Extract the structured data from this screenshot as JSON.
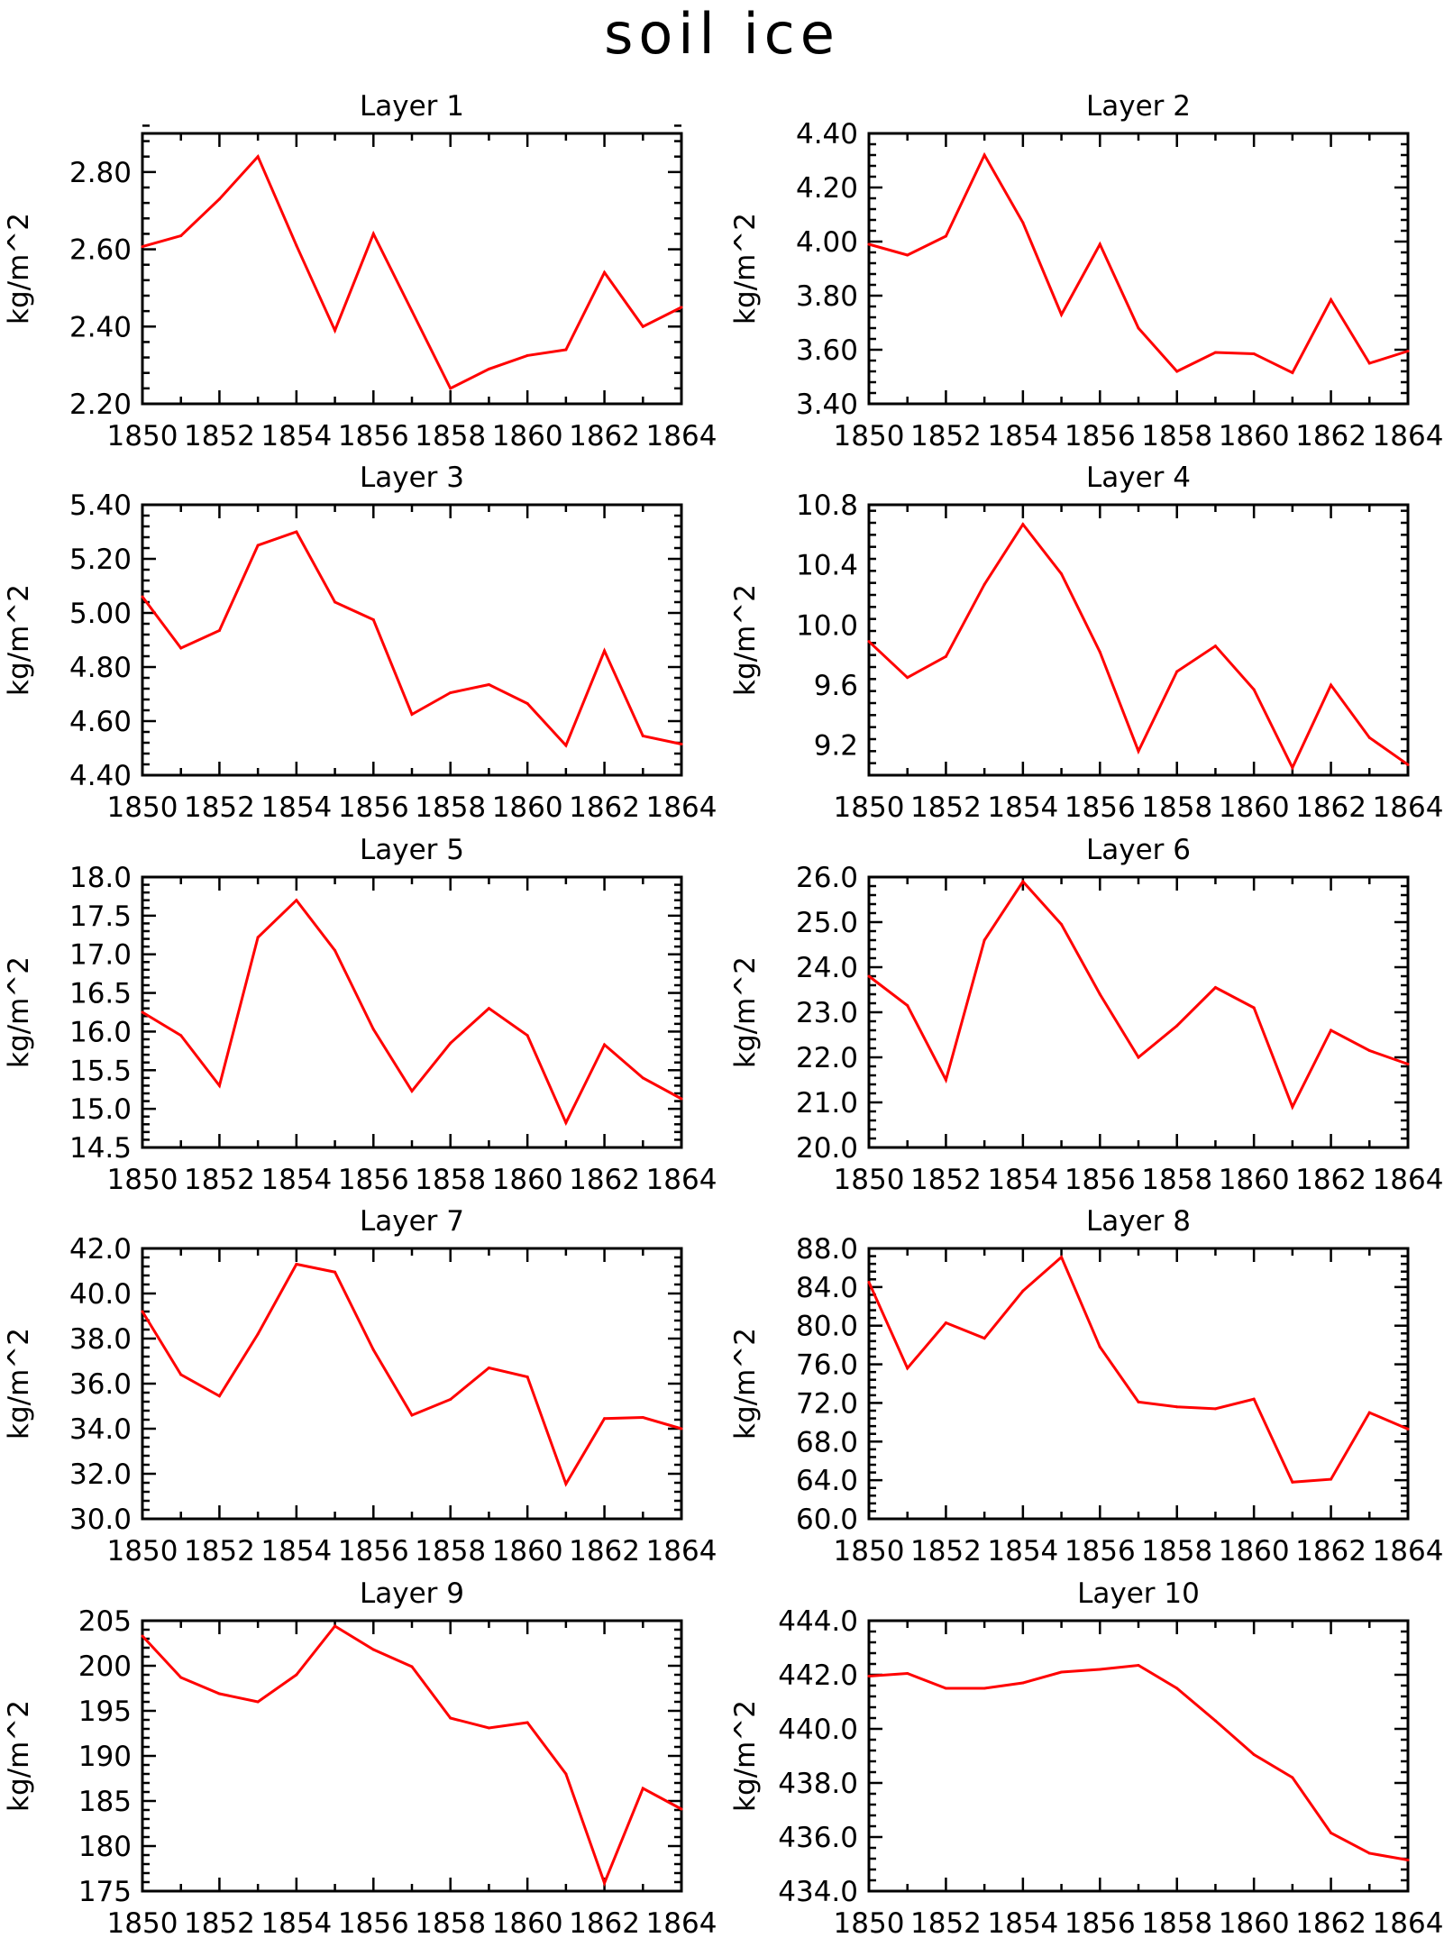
{
  "title": "soil ice",
  "colors": {
    "line": "#ff0000",
    "axis": "#000000"
  },
  "chart_data": [
    {
      "type": "line",
      "title": "Layer 1",
      "ylabel": "kg/m^2",
      "x": [
        1850,
        1851,
        1852,
        1853,
        1854,
        1855,
        1856,
        1857,
        1858,
        1859,
        1860,
        1861,
        1862,
        1863,
        1864
      ],
      "values": [
        2.607,
        2.635,
        2.73,
        2.84,
        2.61,
        2.39,
        2.64,
        2.44,
        2.24,
        2.29,
        2.325,
        2.34,
        2.54,
        2.4,
        2.45
      ],
      "ylim": [
        2.2,
        2.9
      ],
      "yticks": [
        2.2,
        2.4,
        2.6,
        2.8
      ],
      "ytick_labels": [
        "2.20",
        "2.40",
        "2.60",
        "2.80"
      ],
      "xticks": [
        1850,
        1852,
        1854,
        1856,
        1858,
        1860,
        1862,
        1864
      ],
      "xtick_labels": [
        "1850",
        "1852",
        "1854",
        "1856",
        "1858",
        "1860",
        "1862",
        "1864"
      ],
      "grid": false
    },
    {
      "type": "line",
      "title": "Layer 2",
      "ylabel": "kg/m^2",
      "x": [
        1850,
        1851,
        1852,
        1853,
        1854,
        1855,
        1856,
        1857,
        1858,
        1859,
        1860,
        1861,
        1862,
        1863,
        1864
      ],
      "values": [
        3.99,
        3.95,
        4.02,
        4.32,
        4.07,
        3.73,
        3.99,
        3.68,
        3.52,
        3.59,
        3.585,
        3.515,
        3.785,
        3.55,
        3.595
      ],
      "ylim": [
        3.4,
        4.4
      ],
      "yticks": [
        3.4,
        3.6,
        3.8,
        4.0,
        4.2,
        4.4
      ],
      "ytick_labels": [
        "3.40",
        "3.60",
        "3.80",
        "4.00",
        "4.20",
        "4.40"
      ],
      "xticks": [
        1850,
        1852,
        1854,
        1856,
        1858,
        1860,
        1862,
        1864
      ],
      "xtick_labels": [
        "1850",
        "1852",
        "1854",
        "1856",
        "1858",
        "1860",
        "1862",
        "1864"
      ],
      "grid": false
    },
    {
      "type": "line",
      "title": "Layer 3",
      "ylabel": "kg/m^2",
      "x": [
        1850,
        1851,
        1852,
        1853,
        1854,
        1855,
        1856,
        1857,
        1858,
        1859,
        1860,
        1861,
        1862,
        1863,
        1864
      ],
      "values": [
        5.06,
        4.87,
        4.935,
        5.25,
        5.3,
        5.04,
        4.975,
        4.625,
        4.705,
        4.735,
        4.665,
        4.51,
        4.86,
        4.545,
        4.515
      ],
      "ylim": [
        4.4,
        5.4
      ],
      "yticks": [
        4.4,
        4.6,
        4.8,
        5.0,
        5.2,
        5.4
      ],
      "ytick_labels": [
        "4.40",
        "4.60",
        "4.80",
        "5.00",
        "5.20",
        "5.40"
      ],
      "xticks": [
        1850,
        1852,
        1854,
        1856,
        1858,
        1860,
        1862,
        1864
      ],
      "xtick_labels": [
        "1850",
        "1852",
        "1854",
        "1856",
        "1858",
        "1860",
        "1862",
        "1864"
      ],
      "grid": false
    },
    {
      "type": "line",
      "title": "Layer 4",
      "ylabel": "kg/m^2",
      "x": [
        1850,
        1851,
        1852,
        1853,
        1854,
        1855,
        1856,
        1857,
        1858,
        1859,
        1860,
        1861,
        1862,
        1863,
        1864
      ],
      "values": [
        9.89,
        9.65,
        9.79,
        10.27,
        10.67,
        10.34,
        9.82,
        9.16,
        9.69,
        9.86,
        9.57,
        9.05,
        9.6,
        9.25,
        9.07
      ],
      "ylim": [
        9.0,
        10.8
      ],
      "yticks": [
        9.2,
        9.6,
        10.0,
        10.4,
        10.8
      ],
      "ytick_labels": [
        "9.2",
        "9.6",
        "10.0",
        "10.4",
        "10.8"
      ],
      "xticks": [
        1850,
        1852,
        1854,
        1856,
        1858,
        1860,
        1862,
        1864
      ],
      "xtick_labels": [
        "1850",
        "1852",
        "1854",
        "1856",
        "1858",
        "1860",
        "1862",
        "1864"
      ],
      "grid": false
    },
    {
      "type": "line",
      "title": "Layer 5",
      "ylabel": "kg/m^2",
      "x": [
        1850,
        1851,
        1852,
        1853,
        1854,
        1855,
        1856,
        1857,
        1858,
        1859,
        1860,
        1861,
        1862,
        1863,
        1864
      ],
      "values": [
        16.25,
        15.95,
        15.3,
        17.22,
        17.7,
        17.05,
        16.03,
        15.23,
        15.85,
        16.3,
        15.95,
        14.82,
        15.83,
        15.4,
        15.13
      ],
      "ylim": [
        14.5,
        18.0
      ],
      "yticks": [
        14.5,
        15.0,
        15.5,
        16.0,
        16.5,
        17.0,
        17.5,
        18.0
      ],
      "ytick_labels": [
        "14.5",
        "15.0",
        "15.5",
        "16.0",
        "16.5",
        "17.0",
        "17.5",
        "18.0"
      ],
      "xticks": [
        1850,
        1852,
        1854,
        1856,
        1858,
        1860,
        1862,
        1864
      ],
      "xtick_labels": [
        "1850",
        "1852",
        "1854",
        "1856",
        "1858",
        "1860",
        "1862",
        "1864"
      ],
      "grid": false
    },
    {
      "type": "line",
      "title": "Layer 6",
      "ylabel": "kg/m^2",
      "x": [
        1850,
        1851,
        1852,
        1853,
        1854,
        1855,
        1856,
        1857,
        1858,
        1859,
        1860,
        1861,
        1862,
        1863,
        1864
      ],
      "values": [
        23.8,
        23.15,
        21.5,
        24.6,
        25.9,
        24.95,
        23.4,
        22.0,
        22.7,
        23.55,
        23.1,
        20.9,
        22.6,
        22.15,
        21.85
      ],
      "ylim": [
        20.0,
        26.0
      ],
      "yticks": [
        20.0,
        21.0,
        22.0,
        23.0,
        24.0,
        25.0,
        26.0
      ],
      "ytick_labels": [
        "20.0",
        "21.0",
        "22.0",
        "23.0",
        "24.0",
        "25.0",
        "26.0"
      ],
      "xticks": [
        1850,
        1852,
        1854,
        1856,
        1858,
        1860,
        1862,
        1864
      ],
      "xtick_labels": [
        "1850",
        "1852",
        "1854",
        "1856",
        "1858",
        "1860",
        "1862",
        "1864"
      ],
      "grid": false
    },
    {
      "type": "line",
      "title": "Layer 7",
      "ylabel": "kg/m^2",
      "x": [
        1850,
        1851,
        1852,
        1853,
        1854,
        1855,
        1856,
        1857,
        1858,
        1859,
        1860,
        1861,
        1862,
        1863,
        1864
      ],
      "values": [
        39.2,
        36.4,
        35.45,
        38.2,
        41.3,
        40.95,
        37.5,
        34.6,
        35.3,
        36.7,
        36.3,
        31.55,
        34.45,
        34.5,
        34.0
      ],
      "ylim": [
        30.0,
        42.0
      ],
      "yticks": [
        30.0,
        32.0,
        34.0,
        36.0,
        38.0,
        40.0,
        42.0
      ],
      "ytick_labels": [
        "30.0",
        "32.0",
        "34.0",
        "36.0",
        "38.0",
        "40.0",
        "42.0"
      ],
      "xticks": [
        1850,
        1852,
        1854,
        1856,
        1858,
        1860,
        1862,
        1864
      ],
      "xtick_labels": [
        "1850",
        "1852",
        "1854",
        "1856",
        "1858",
        "1860",
        "1862",
        "1864"
      ],
      "grid": false
    },
    {
      "type": "line",
      "title": "Layer 8",
      "ylabel": "kg/m^2",
      "x": [
        1850,
        1851,
        1852,
        1853,
        1854,
        1855,
        1856,
        1857,
        1858,
        1859,
        1860,
        1861,
        1862,
        1863,
        1864
      ],
      "values": [
        84.5,
        75.6,
        80.3,
        78.7,
        83.6,
        87.1,
        77.8,
        72.1,
        71.6,
        71.4,
        72.4,
        63.8,
        64.1,
        71.0,
        69.3
      ],
      "ylim": [
        60.0,
        88.0
      ],
      "yticks": [
        60.0,
        64.0,
        68.0,
        72.0,
        76.0,
        80.0,
        84.0,
        88.0
      ],
      "ytick_labels": [
        "60.0",
        "64.0",
        "68.0",
        "72.0",
        "76.0",
        "80.0",
        "84.0",
        "88.0"
      ],
      "xticks": [
        1850,
        1852,
        1854,
        1856,
        1858,
        1860,
        1862,
        1864
      ],
      "xtick_labels": [
        "1850",
        "1852",
        "1854",
        "1856",
        "1858",
        "1860",
        "1862",
        "1864"
      ],
      "grid": false
    },
    {
      "type": "line",
      "title": "Layer 9",
      "ylabel": "kg/m^2",
      "x": [
        1850,
        1851,
        1852,
        1853,
        1854,
        1855,
        1856,
        1857,
        1858,
        1859,
        1860,
        1861,
        1862,
        1863,
        1864
      ],
      "values": [
        203.3,
        198.7,
        196.9,
        196.0,
        199.0,
        204.4,
        201.8,
        199.9,
        194.2,
        193.1,
        193.7,
        188.0,
        175.9,
        186.4,
        184.1
      ],
      "ylim": [
        175,
        205
      ],
      "yticks": [
        175,
        180,
        185,
        190,
        195,
        200,
        205
      ],
      "ytick_labels": [
        "175",
        "180",
        "185",
        "190",
        "195",
        "200",
        "205"
      ],
      "xticks": [
        1850,
        1852,
        1854,
        1856,
        1858,
        1860,
        1862,
        1864
      ],
      "xtick_labels": [
        "1850",
        "1852",
        "1854",
        "1856",
        "1858",
        "1860",
        "1862",
        "1864"
      ],
      "grid": false
    },
    {
      "type": "line",
      "title": "Layer 10",
      "ylabel": "kg/m^2",
      "x": [
        1850,
        1851,
        1852,
        1853,
        1854,
        1855,
        1856,
        1857,
        1858,
        1859,
        1860,
        1861,
        1862,
        1863,
        1864
      ],
      "values": [
        441.95,
        442.05,
        441.5,
        441.5,
        441.7,
        442.1,
        442.2,
        442.35,
        441.5,
        440.3,
        439.05,
        438.2,
        436.15,
        435.4,
        435.15
      ],
      "ylim": [
        434.0,
        444.0
      ],
      "yticks": [
        434.0,
        436.0,
        438.0,
        440.0,
        442.0,
        444.0
      ],
      "ytick_labels": [
        "434.0",
        "436.0",
        "438.0",
        "440.0",
        "442.0",
        "444.0"
      ],
      "xticks": [
        1850,
        1852,
        1854,
        1856,
        1858,
        1860,
        1862,
        1864
      ],
      "xtick_labels": [
        "1850",
        "1852",
        "1854",
        "1856",
        "1858",
        "1860",
        "1862",
        "1864"
      ],
      "grid": false
    }
  ]
}
